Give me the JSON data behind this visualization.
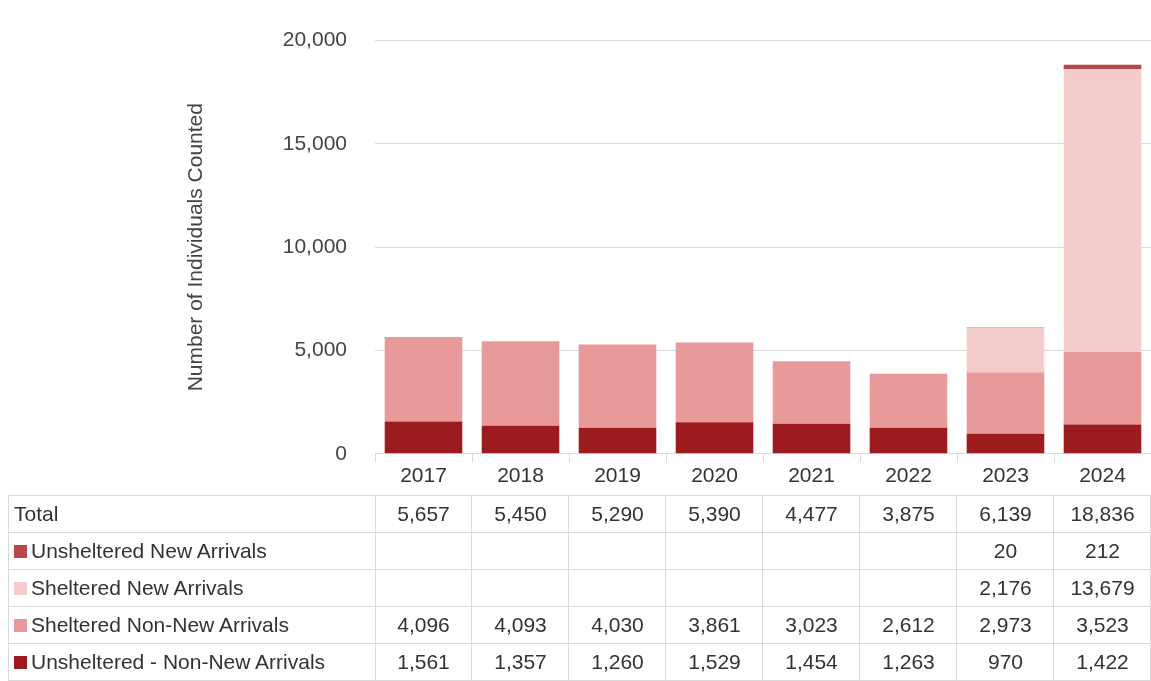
{
  "chart_data": {
    "type": "bar",
    "stacked": true,
    "ylabel": "Number of Individuals Counted",
    "categories": [
      "2017",
      "2018",
      "2019",
      "2020",
      "2021",
      "2022",
      "2023",
      "2024"
    ],
    "series": [
      {
        "name": "Unsheltered - Non-New Arrivals",
        "color": "#9b1b1f",
        "values": [
          1561,
          1357,
          1260,
          1529,
          1454,
          1263,
          970,
          1422
        ],
        "value_labels": [
          "1,561",
          "1,357",
          "1,260",
          "1,529",
          "1,454",
          "1,263",
          "970",
          "1,422"
        ]
      },
      {
        "name": "Sheltered Non-New Arrivals",
        "color": "#e89a9a",
        "values": [
          4096,
          4093,
          4030,
          3861,
          3023,
          2612,
          2973,
          3523
        ],
        "value_labels": [
          "4,096",
          "4,093",
          "4,030",
          "3,861",
          "3,023",
          "2,612",
          "2,973",
          "3,523"
        ]
      },
      {
        "name": "Sheltered New Arrivals",
        "color": "#f5cccc",
        "values": [
          null,
          null,
          null,
          null,
          null,
          null,
          2176,
          13679
        ],
        "value_labels": [
          null,
          null,
          null,
          null,
          null,
          null,
          "2,176",
          "13,679"
        ]
      },
      {
        "name": "Unsheltered New Arrivals",
        "color": "#b8474b",
        "values": [
          null,
          null,
          null,
          null,
          null,
          null,
          20,
          212
        ],
        "value_labels": [
          null,
          null,
          null,
          null,
          null,
          null,
          "20",
          "212"
        ]
      }
    ],
    "annotations": [
      "Total"
    ],
    "totals": [
      "5,657",
      "5,450",
      "5,290",
      "5,390",
      "4,477",
      "3,875",
      "6,139",
      "18,836"
    ],
    "ylim": [
      0,
      20000
    ],
    "yticks": [
      0,
      {
        "value": 5000,
        "label": "5,000"
      },
      {
        "value": 10000,
        "label": "10,000"
      },
      {
        "value": 15000,
        "label": "15,000"
      },
      {
        "value": 20000,
        "label": "20,000"
      }
    ],
    "grid": "y",
    "legend": "bottom"
  }
}
